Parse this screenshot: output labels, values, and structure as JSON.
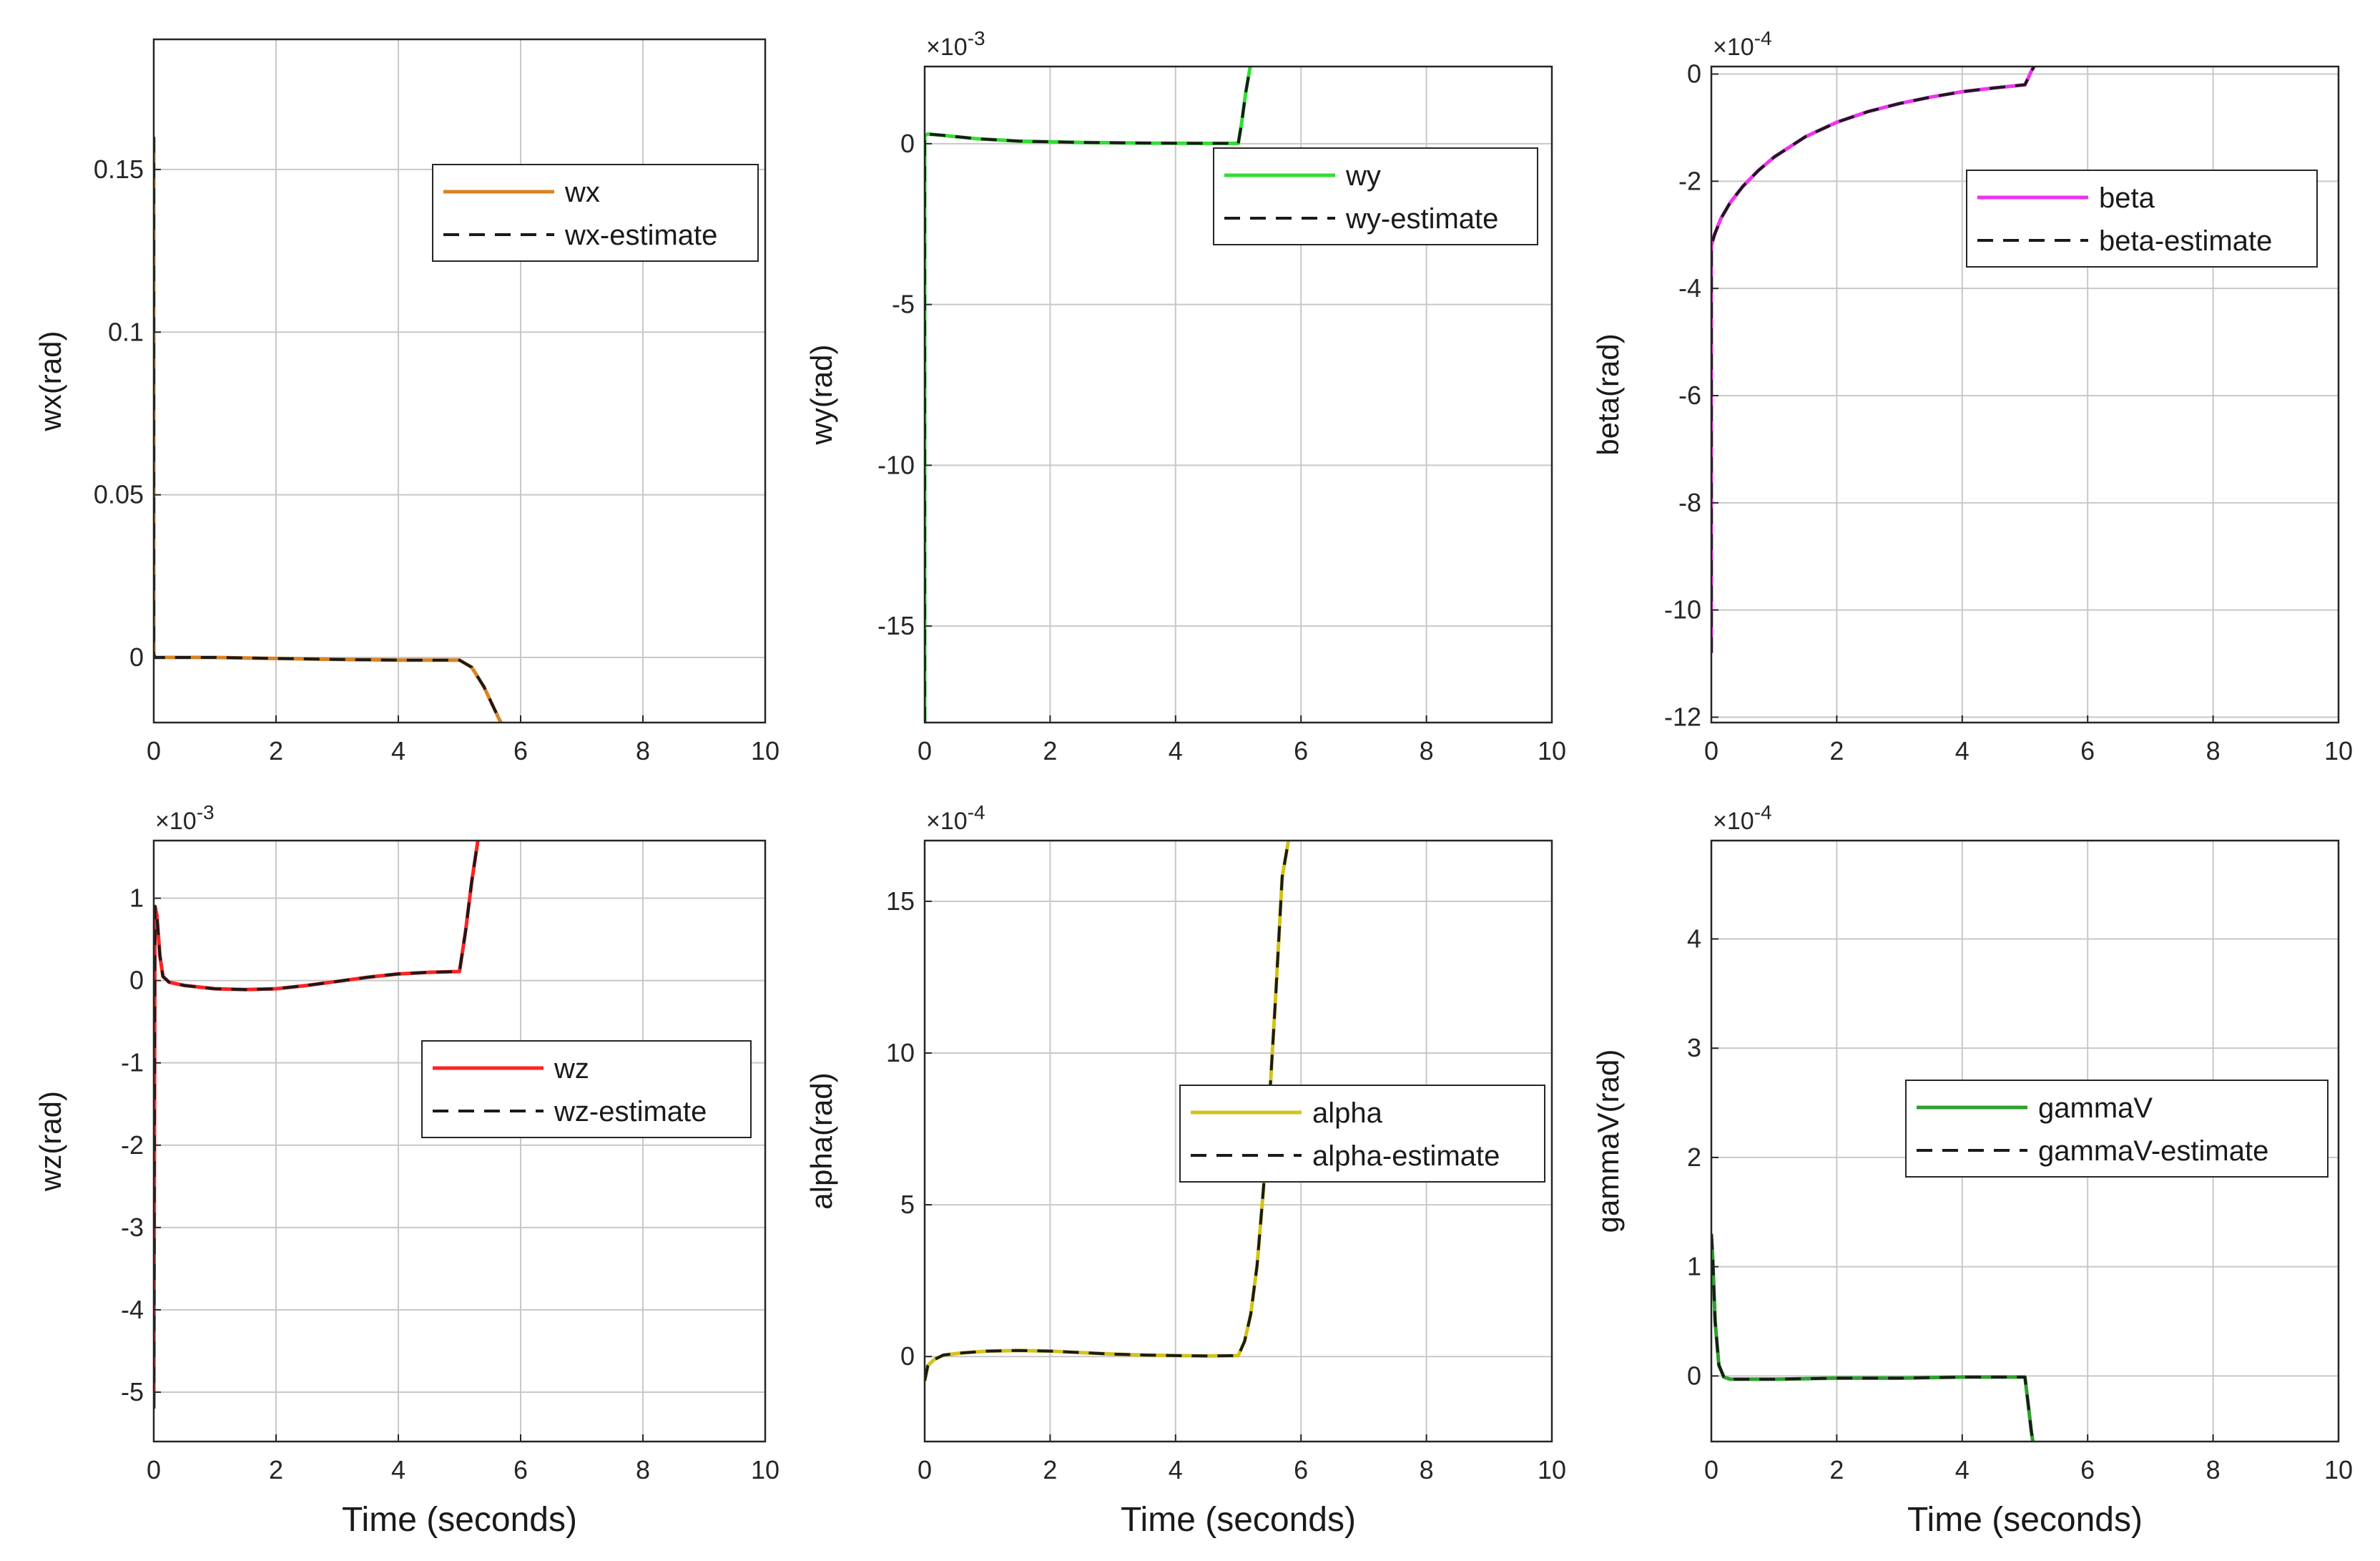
{
  "figure": {
    "common_xlabel": "Time (seconds)",
    "estimate_color": "#1a1a1a"
  },
  "chart_data": [
    {
      "type": "line",
      "id": "wx",
      "ylabel": "wx(rad)",
      "xlabel": "",
      "xlim": [
        0,
        10
      ],
      "ylim": [
        -0.02,
        0.19
      ],
      "xticks": [
        0,
        2,
        4,
        6,
        8,
        10
      ],
      "xtick_labels": [
        "0",
        "2",
        "4",
        "6",
        "8",
        "10"
      ],
      "yticks": [
        0,
        0.05,
        0.1,
        0.15
      ],
      "ytick_labels": [
        "0",
        "0.05",
        "0.1",
        "0.15"
      ],
      "exponent": "",
      "grid": true,
      "legend_position": "upper-right",
      "series": [
        {
          "name": "wx",
          "color": "#D98324",
          "dash": "solid",
          "x": [
            0,
            0,
            0.02,
            0.5,
            1,
            2,
            3,
            4,
            4.6,
            5,
            5.2,
            5.4,
            5.55,
            5.7
          ],
          "y": [
            0.16,
            0.001,
            0,
            0,
            0,
            -0.0003,
            -0.0006,
            -0.0008,
            -0.0008,
            -0.0008,
            -0.003,
            -0.009,
            -0.015,
            -0.021
          ]
        },
        {
          "name": "wx-estimate",
          "color": "#1a1a1a",
          "dash": "dashed",
          "x": [
            0,
            0,
            0.02,
            0.5,
            1,
            2,
            3,
            4,
            4.6,
            5,
            5.2,
            5.4,
            5.55,
            5.7
          ],
          "y": [
            0.16,
            0.001,
            0,
            0,
            0,
            -0.0003,
            -0.0006,
            -0.0008,
            -0.0008,
            -0.0008,
            -0.003,
            -0.009,
            -0.015,
            -0.021
          ]
        }
      ]
    },
    {
      "type": "line",
      "id": "wy",
      "ylabel": "wy(rad)",
      "xlabel": "",
      "xlim": [
        0,
        10
      ],
      "ylim": [
        -0.018,
        0.0024
      ],
      "xticks": [
        0,
        2,
        4,
        6,
        8,
        10
      ],
      "xtick_labels": [
        "0",
        "2",
        "4",
        "6",
        "8",
        "10"
      ],
      "yticks": [
        -0.015,
        -0.01,
        -0.005,
        0
      ],
      "ytick_labels": [
        "-15",
        "-10",
        "-5",
        "0"
      ],
      "exponent": "-3",
      "grid": true,
      "legend_position": "upper-right",
      "series": [
        {
          "name": "wy",
          "color": "#33DD33",
          "dash": "solid",
          "x": [
            0,
            0,
            0.05,
            0.3,
            0.8,
            1.5,
            2.5,
            3.5,
            4.5,
            5,
            5.05,
            5.12,
            5.2
          ],
          "y": [
            -0.018,
            0.00025,
            0.0003,
            0.00026,
            0.00016,
            8e-05,
            4e-05,
            2e-05,
            1e-05,
            1e-05,
            0.0006,
            0.0016,
            0.0025
          ]
        },
        {
          "name": "wy-estimate",
          "color": "#1a1a1a",
          "dash": "dashed",
          "x": [
            0,
            0,
            0.05,
            0.3,
            0.8,
            1.5,
            2.5,
            3.5,
            4.5,
            5,
            5.05,
            5.12,
            5.2
          ],
          "y": [
            -0.018,
            0.00025,
            0.0003,
            0.00026,
            0.00016,
            8e-05,
            4e-05,
            2e-05,
            1e-05,
            1e-05,
            0.0006,
            0.0016,
            0.0025
          ]
        }
      ]
    },
    {
      "type": "line",
      "id": "beta",
      "ylabel": "beta(rad)",
      "xlabel": "",
      "xlim": [
        0,
        10
      ],
      "ylim": [
        -0.00121,
        1.4e-05
      ],
      "xticks": [
        0,
        2,
        4,
        6,
        8,
        10
      ],
      "xtick_labels": [
        "0",
        "2",
        "4",
        "6",
        "8",
        "10"
      ],
      "yticks": [
        -0.0012,
        -0.001,
        -0.0008,
        -0.0006,
        -0.0004,
        -0.0002,
        0
      ],
      "ytick_labels": [
        "-12",
        "-10",
        "-8",
        "-6",
        "-4",
        "-2",
        "0"
      ],
      "exponent": "-4",
      "grid": true,
      "legend_position": "upper-right",
      "series": [
        {
          "name": "beta",
          "color": "#EE33EE",
          "dash": "solid",
          "x": [
            0,
            0,
            0.05,
            0.15,
            0.3,
            0.5,
            0.75,
            1,
            1.5,
            2,
            2.5,
            3,
            3.5,
            4,
            4.5,
            5,
            5.05,
            5.1,
            5.15
          ],
          "y": [
            -0.00108,
            -0.00032,
            -0.0003,
            -0.00027,
            -0.00024,
            -0.00021,
            -0.00018,
            -0.000155,
            -0.000117,
            -9e-05,
            -7e-05,
            -5.5e-05,
            -4.3e-05,
            -3.3e-05,
            -2.6e-05,
            -2e-05,
            -8e-06,
            5e-06,
            1.5e-05
          ]
        },
        {
          "name": "beta-estimate",
          "color": "#1a1a1a",
          "dash": "dashed",
          "x": [
            0,
            0,
            0.05,
            0.15,
            0.3,
            0.5,
            0.75,
            1,
            1.5,
            2,
            2.5,
            3,
            3.5,
            4,
            4.5,
            5,
            5.05,
            5.1,
            5.15
          ],
          "y": [
            -0.00108,
            -0.00032,
            -0.0003,
            -0.00027,
            -0.00024,
            -0.00021,
            -0.00018,
            -0.000155,
            -0.000117,
            -9e-05,
            -7e-05,
            -5.5e-05,
            -4.3e-05,
            -3.3e-05,
            -2.6e-05,
            -2e-05,
            -8e-06,
            5e-06,
            1.5e-05
          ]
        }
      ]
    },
    {
      "type": "line",
      "id": "wz",
      "ylabel": "wz(rad)",
      "xlabel": "Time (seconds)",
      "xlim": [
        0,
        10
      ],
      "ylim": [
        -0.0056,
        0.0017
      ],
      "xticks": [
        0,
        2,
        4,
        6,
        8,
        10
      ],
      "xtick_labels": [
        "0",
        "2",
        "4",
        "6",
        "8",
        "10"
      ],
      "yticks": [
        -0.005,
        -0.004,
        -0.003,
        -0.002,
        -0.001,
        0,
        0.001
      ],
      "ytick_labels": [
        "-5",
        "-4",
        "-3",
        "-2",
        "-1",
        "0",
        "1"
      ],
      "exponent": "-3",
      "grid": true,
      "legend_position": "center-right",
      "series": [
        {
          "name": "wz",
          "color": "#FF2222",
          "dash": "solid",
          "x": [
            0,
            0.02,
            0.05,
            0.1,
            0.15,
            0.25,
            0.5,
            1,
            1.5,
            2,
            2.5,
            3,
            3.5,
            4,
            4.5,
            5,
            5.1,
            5.2,
            5.3
          ],
          "y": [
            -0.0052,
            0.0009,
            0.0008,
            0.0003,
            5e-05,
            -2e-05,
            -6e-05,
            -0.0001,
            -0.00011,
            -0.0001,
            -6e-05,
            -1e-05,
            4e-05,
            8e-05,
            0.0001,
            0.00011,
            0.0006,
            0.0012,
            0.0017
          ]
        },
        {
          "name": "wz-estimate",
          "color": "#1a1a1a",
          "dash": "dashed",
          "x": [
            0,
            0.02,
            0.05,
            0.1,
            0.15,
            0.25,
            0.5,
            1,
            1.5,
            2,
            2.5,
            3,
            3.5,
            4,
            4.5,
            5,
            5.1,
            5.2,
            5.3
          ],
          "y": [
            -0.0052,
            0.0009,
            0.0008,
            0.0003,
            5e-05,
            -2e-05,
            -6e-05,
            -0.0001,
            -0.00011,
            -0.0001,
            -6e-05,
            -1e-05,
            4e-05,
            8e-05,
            0.0001,
            0.00011,
            0.0006,
            0.0012,
            0.0017
          ]
        }
      ]
    },
    {
      "type": "line",
      "id": "alpha",
      "ylabel": "alpha(rad)",
      "xlabel": "Time (seconds)",
      "xlim": [
        0,
        10
      ],
      "ylim": [
        -0.00028,
        0.0017
      ],
      "xticks": [
        0,
        2,
        4,
        6,
        8,
        10
      ],
      "xtick_labels": [
        "0",
        "2",
        "4",
        "6",
        "8",
        "10"
      ],
      "yticks": [
        0,
        0.0005,
        0.001,
        0.0015
      ],
      "ytick_labels": [
        "0",
        "5",
        "10",
        "15"
      ],
      "exponent": "-4",
      "grid": true,
      "legend_position": "center-right",
      "series": [
        {
          "name": "alpha",
          "color": "#D4C21A",
          "dash": "solid",
          "x": [
            0,
            0.05,
            0.15,
            0.3,
            0.6,
            1,
            1.5,
            2,
            2.5,
            3,
            3.5,
            4,
            4.5,
            5,
            5.1,
            5.2,
            5.3,
            5.4,
            5.5,
            5.6,
            5.7,
            5.8
          ],
          "y": [
            -8e-05,
            -3e-05,
            -1e-05,
            5e-06,
            1.2e-05,
            1.8e-05,
            2e-05,
            1.8e-05,
            1.3e-05,
            8e-06,
            5e-06,
            3e-06,
            2e-06,
            3e-06,
            5e-05,
            0.00014,
            0.0003,
            0.00055,
            0.00085,
            0.0012,
            0.00158,
            0.0017
          ]
        },
        {
          "name": "alpha-estimate",
          "color": "#1a1a1a",
          "dash": "dashed",
          "x": [
            0,
            0.05,
            0.15,
            0.3,
            0.6,
            1,
            1.5,
            2,
            2.5,
            3,
            3.5,
            4,
            4.5,
            5,
            5.1,
            5.2,
            5.3,
            5.4,
            5.5,
            5.6,
            5.7,
            5.8
          ],
          "y": [
            -8e-05,
            -3e-05,
            -1e-05,
            5e-06,
            1.2e-05,
            1.8e-05,
            2e-05,
            1.8e-05,
            1.3e-05,
            8e-06,
            5e-06,
            3e-06,
            2e-06,
            3e-06,
            5e-05,
            0.00014,
            0.0003,
            0.00055,
            0.00085,
            0.0012,
            0.00158,
            0.0017
          ]
        }
      ]
    },
    {
      "type": "line",
      "id": "gammaV",
      "ylabel": "gammaV(rad)",
      "xlabel": "Time (seconds)",
      "xlim": [
        0,
        10
      ],
      "ylim": [
        -6e-05,
        0.00049
      ],
      "xticks": [
        0,
        2,
        4,
        6,
        8,
        10
      ],
      "xtick_labels": [
        "0",
        "2",
        "4",
        "6",
        "8",
        "10"
      ],
      "yticks": [
        0,
        0.0001,
        0.0002,
        0.0003,
        0.0004
      ],
      "ytick_labels": [
        "0",
        "1",
        "2",
        "3",
        "4"
      ],
      "exponent": "-4",
      "grid": true,
      "legend_position": "center-right",
      "series": [
        {
          "name": "gammaV",
          "color": "#2DA12D",
          "dash": "solid",
          "x": [
            0,
            0.02,
            0.06,
            0.12,
            0.2,
            0.3,
            0.5,
            1,
            2,
            3,
            4,
            5,
            5.05,
            5.1,
            5.15
          ],
          "y": [
            0.00013,
            0.00011,
            5e-05,
            1e-05,
            -1e-06,
            -3e-06,
            -3e-06,
            -3e-06,
            -2e-06,
            -2e-06,
            -1e-06,
            -1e-06,
            -2.5e-05,
            -5e-05,
            -7e-05
          ]
        },
        {
          "name": "gammaV-estimate",
          "color": "#1a1a1a",
          "dash": "dashed",
          "x": [
            0,
            0.02,
            0.06,
            0.12,
            0.2,
            0.3,
            0.5,
            1,
            2,
            3,
            4,
            5,
            5.05,
            5.1,
            5.15
          ],
          "y": [
            0.00013,
            0.00011,
            5e-05,
            1e-05,
            -1e-06,
            -3e-06,
            -3e-06,
            -3e-06,
            -2e-06,
            -2e-06,
            -1e-06,
            -1e-06,
            -2.5e-05,
            -5e-05,
            -7e-05
          ]
        }
      ]
    }
  ]
}
